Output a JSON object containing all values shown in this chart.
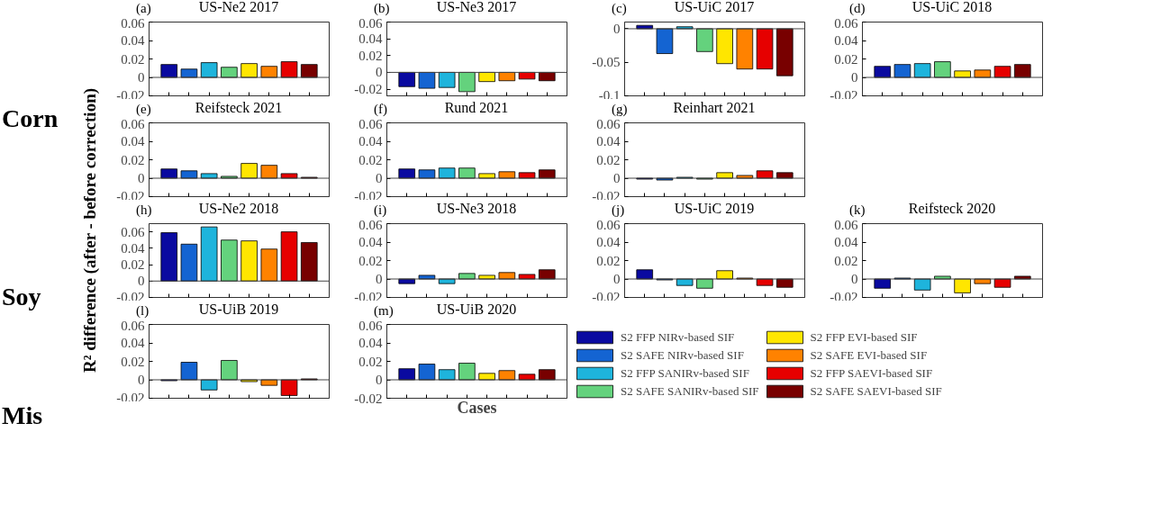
{
  "chart_data": [
    {
      "type": "bar",
      "title": "US-Ne2 2017",
      "ylabel": "R² difference (after - before correction)",
      "annotations": [
        "(a)",
        "Corn"
      ],
      "categories": [
        null
      ],
      "tick_labels": "y",
      "ylim": [
        -0.02,
        0.06
      ],
      "yticks": [
        -0.02,
        0,
        0.02,
        0.04,
        0.06
      ],
      "ref_lines": [
        {
          "axis": "y",
          "value": 0
        }
      ],
      "series": [
        {
          "color": "#0a0aa0",
          "values": [
            0.014
          ]
        },
        {
          "color": "#1464d2",
          "values": [
            0.009
          ]
        },
        {
          "color": "#1eb4dc",
          "values": [
            0.016
          ]
        },
        {
          "color": "#64d27d",
          "values": [
            0.011
          ]
        },
        {
          "color": "#ffe600",
          "values": [
            0.015
          ]
        },
        {
          "color": "#ff8200",
          "values": [
            0.012
          ]
        },
        {
          "color": "#e60000",
          "values": [
            0.017
          ]
        },
        {
          "color": "#780000",
          "values": [
            0.014
          ]
        }
      ]
    },
    {
      "type": "bar",
      "title": "US-Ne3 2017",
      "annotations": [
        "(b)"
      ],
      "categories": [
        null
      ],
      "tick_labels": "y",
      "ylim": [
        -0.028,
        0.06
      ],
      "yticks": [
        -0.02,
        0,
        0.02,
        0.04,
        0.06
      ],
      "ref_lines": [
        {
          "axis": "y",
          "value": 0
        }
      ],
      "series": [
        {
          "color": "#0a0aa0",
          "values": [
            -0.017
          ]
        },
        {
          "color": "#1464d2",
          "values": [
            -0.019
          ]
        },
        {
          "color": "#1eb4dc",
          "values": [
            -0.018
          ]
        },
        {
          "color": "#64d27d",
          "values": [
            -0.023
          ]
        },
        {
          "color": "#ffe600",
          "values": [
            -0.011
          ]
        },
        {
          "color": "#ff8200",
          "values": [
            -0.01
          ]
        },
        {
          "color": "#e60000",
          "values": [
            -0.008
          ]
        },
        {
          "color": "#780000",
          "values": [
            -0.01
          ]
        }
      ]
    },
    {
      "type": "bar",
      "title": "US-UiC 2017",
      "annotations": [
        "(c)"
      ],
      "categories": [
        null
      ],
      "tick_labels": "y",
      "ylim": [
        -0.1,
        0.01
      ],
      "yticks": [
        -0.1,
        -0.05,
        0
      ],
      "ref_lines": [
        {
          "axis": "y",
          "value": 0
        }
      ],
      "series": [
        {
          "color": "#0a0aa0",
          "values": [
            0.005
          ]
        },
        {
          "color": "#1464d2",
          "values": [
            -0.037
          ]
        },
        {
          "color": "#1eb4dc",
          "values": [
            0.003
          ]
        },
        {
          "color": "#64d27d",
          "values": [
            -0.034
          ]
        },
        {
          "color": "#ffe600",
          "values": [
            -0.052
          ]
        },
        {
          "color": "#ff8200",
          "values": [
            -0.06
          ]
        },
        {
          "color": "#e60000",
          "values": [
            -0.06
          ]
        },
        {
          "color": "#780000",
          "values": [
            -0.07
          ]
        }
      ]
    },
    {
      "type": "bar",
      "title": "US-UiC 2018",
      "annotations": [
        "(d)"
      ],
      "categories": [
        null
      ],
      "tick_labels": "y",
      "ylim": [
        -0.02,
        0.06
      ],
      "yticks": [
        -0.02,
        0,
        0.02,
        0.04,
        0.06
      ],
      "ref_lines": [
        {
          "axis": "y",
          "value": 0
        }
      ],
      "series": [
        {
          "color": "#0a0aa0",
          "values": [
            0.012
          ]
        },
        {
          "color": "#1464d2",
          "values": [
            0.014
          ]
        },
        {
          "color": "#1eb4dc",
          "values": [
            0.015
          ]
        },
        {
          "color": "#64d27d",
          "values": [
            0.017
          ]
        },
        {
          "color": "#ffe600",
          "values": [
            0.007
          ]
        },
        {
          "color": "#ff8200",
          "values": [
            0.008
          ]
        },
        {
          "color": "#e60000",
          "values": [
            0.012
          ]
        },
        {
          "color": "#780000",
          "values": [
            0.014
          ]
        }
      ]
    },
    {
      "type": "bar",
      "title": "Reifsteck 2021",
      "annotations": [
        "(e)"
      ],
      "categories": [
        null
      ],
      "tick_labels": "y",
      "ylim": [
        -0.02,
        0.06
      ],
      "yticks": [
        -0.02,
        0,
        0.02,
        0.04,
        0.06
      ],
      "ref_lines": [
        {
          "axis": "y",
          "value": 0
        }
      ],
      "series": [
        {
          "color": "#0a0aa0",
          "values": [
            0.01
          ]
        },
        {
          "color": "#1464d2",
          "values": [
            0.008
          ]
        },
        {
          "color": "#1eb4dc",
          "values": [
            0.005
          ]
        },
        {
          "color": "#64d27d",
          "values": [
            0.002
          ]
        },
        {
          "color": "#ffe600",
          "values": [
            0.016
          ]
        },
        {
          "color": "#ff8200",
          "values": [
            0.014
          ]
        },
        {
          "color": "#e60000",
          "values": [
            0.005
          ]
        },
        {
          "color": "#780000",
          "values": [
            0.001
          ]
        }
      ]
    },
    {
      "type": "bar",
      "title": "Rund 2021",
      "annotations": [
        "(f)"
      ],
      "categories": [
        null
      ],
      "tick_labels": "y",
      "ylim": [
        -0.02,
        0.06
      ],
      "yticks": [
        -0.02,
        0,
        0.02,
        0.04,
        0.06
      ],
      "ref_lines": [
        {
          "axis": "y",
          "value": 0
        }
      ],
      "series": [
        {
          "color": "#0a0aa0",
          "values": [
            0.01
          ]
        },
        {
          "color": "#1464d2",
          "values": [
            0.009
          ]
        },
        {
          "color": "#1eb4dc",
          "values": [
            0.011
          ]
        },
        {
          "color": "#64d27d",
          "values": [
            0.011
          ]
        },
        {
          "color": "#ffe600",
          "values": [
            0.005
          ]
        },
        {
          "color": "#ff8200",
          "values": [
            0.007
          ]
        },
        {
          "color": "#e60000",
          "values": [
            0.006
          ]
        },
        {
          "color": "#780000",
          "values": [
            0.009
          ]
        }
      ]
    },
    {
      "type": "bar",
      "title": "Reinhart 2021",
      "annotations": [
        "(g)"
      ],
      "categories": [
        null
      ],
      "tick_labels": "y",
      "ylim": [
        -0.02,
        0.06
      ],
      "yticks": [
        -0.02,
        0,
        0.02,
        0.04,
        0.06
      ],
      "ref_lines": [
        {
          "axis": "y",
          "value": 0
        }
      ],
      "series": [
        {
          "color": "#0a0aa0",
          "values": [
            -0.001
          ]
        },
        {
          "color": "#1464d2",
          "values": [
            -0.002
          ]
        },
        {
          "color": "#1eb4dc",
          "values": [
            0.001
          ]
        },
        {
          "color": "#64d27d",
          "values": [
            -0.001
          ]
        },
        {
          "color": "#ffe600",
          "values": [
            0.006
          ]
        },
        {
          "color": "#ff8200",
          "values": [
            0.003
          ]
        },
        {
          "color": "#e60000",
          "values": [
            0.008
          ]
        },
        {
          "color": "#780000",
          "values": [
            0.006
          ]
        }
      ]
    },
    {
      "type": "bar",
      "title": "US-Ne2 2018",
      "annotations": [
        "(h)",
        "Soy"
      ],
      "categories": [
        null
      ],
      "tick_labels": "y",
      "ylim": [
        -0.02,
        0.07
      ],
      "yticks": [
        -0.02,
        0,
        0.02,
        0.04,
        0.06
      ],
      "ref_lines": [
        {
          "axis": "y",
          "value": 0
        }
      ],
      "series": [
        {
          "color": "#0a0aa0",
          "values": [
            0.059
          ]
        },
        {
          "color": "#1464d2",
          "values": [
            0.045
          ]
        },
        {
          "color": "#1eb4dc",
          "values": [
            0.066
          ]
        },
        {
          "color": "#64d27d",
          "values": [
            0.05
          ]
        },
        {
          "color": "#ffe600",
          "values": [
            0.049
          ]
        },
        {
          "color": "#ff8200",
          "values": [
            0.039
          ]
        },
        {
          "color": "#e60000",
          "values": [
            0.06
          ]
        },
        {
          "color": "#780000",
          "values": [
            0.047
          ]
        }
      ]
    },
    {
      "type": "bar",
      "title": "US-Ne3 2018",
      "annotations": [
        "(i)"
      ],
      "categories": [
        null
      ],
      "tick_labels": "y",
      "ylim": [
        -0.02,
        0.06
      ],
      "yticks": [
        -0.02,
        0,
        0.02,
        0.04,
        0.06
      ],
      "ref_lines": [
        {
          "axis": "y",
          "value": 0
        }
      ],
      "series": [
        {
          "color": "#0a0aa0",
          "values": [
            -0.005
          ]
        },
        {
          "color": "#1464d2",
          "values": [
            0.004
          ]
        },
        {
          "color": "#1eb4dc",
          "values": [
            -0.005
          ]
        },
        {
          "color": "#64d27d",
          "values": [
            0.006
          ]
        },
        {
          "color": "#ffe600",
          "values": [
            0.004
          ]
        },
        {
          "color": "#ff8200",
          "values": [
            0.007
          ]
        },
        {
          "color": "#e60000",
          "values": [
            0.005
          ]
        },
        {
          "color": "#780000",
          "values": [
            0.01
          ]
        }
      ]
    },
    {
      "type": "bar",
      "title": "US-UiC 2019",
      "annotations": [
        "(j)"
      ],
      "categories": [
        null
      ],
      "tick_labels": "y",
      "ylim": [
        -0.02,
        0.06
      ],
      "yticks": [
        -0.02,
        0,
        0.02,
        0.04,
        0.06
      ],
      "ref_lines": [
        {
          "axis": "y",
          "value": 0
        }
      ],
      "series": [
        {
          "color": "#0a0aa0",
          "values": [
            0.01
          ]
        },
        {
          "color": "#1464d2",
          "values": [
            -0.001
          ]
        },
        {
          "color": "#1eb4dc",
          "values": [
            -0.007
          ]
        },
        {
          "color": "#64d27d",
          "values": [
            -0.01
          ]
        },
        {
          "color": "#ffe600",
          "values": [
            0.009
          ]
        },
        {
          "color": "#ff8200",
          "values": [
            0.001
          ]
        },
        {
          "color": "#e60000",
          "values": [
            -0.007
          ]
        },
        {
          "color": "#780000",
          "values": [
            -0.009
          ]
        }
      ]
    },
    {
      "type": "bar",
      "title": "Reifsteck 2020",
      "annotations": [
        "(k)"
      ],
      "categories": [
        null
      ],
      "tick_labels": "y",
      "ylim": [
        -0.02,
        0.06
      ],
      "yticks": [
        -0.02,
        0,
        0.02,
        0.04,
        0.06
      ],
      "ref_lines": [
        {
          "axis": "y",
          "value": 0
        }
      ],
      "series": [
        {
          "color": "#0a0aa0",
          "values": [
            -0.01
          ]
        },
        {
          "color": "#1464d2",
          "values": [
            0.001
          ]
        },
        {
          "color": "#1eb4dc",
          "values": [
            -0.012
          ]
        },
        {
          "color": "#64d27d",
          "values": [
            0.003
          ]
        },
        {
          "color": "#ffe600",
          "values": [
            -0.015
          ]
        },
        {
          "color": "#ff8200",
          "values": [
            -0.005
          ]
        },
        {
          "color": "#e60000",
          "values": [
            -0.009
          ]
        },
        {
          "color": "#780000",
          "values": [
            0.003
          ]
        }
      ]
    },
    {
      "type": "bar",
      "title": "US-UiB 2019",
      "annotations": [
        "(l)",
        "Mis"
      ],
      "categories": [
        null
      ],
      "tick_labels": "y",
      "ylim": [
        -0.02,
        0.06
      ],
      "yticks": [
        -0.02,
        0,
        0.02,
        0.04,
        0.06
      ],
      "ref_lines": [
        {
          "axis": "y",
          "value": 0
        }
      ],
      "series": [
        {
          "color": "#0a0aa0",
          "values": [
            -0.001
          ]
        },
        {
          "color": "#1464d2",
          "values": [
            0.019
          ]
        },
        {
          "color": "#1eb4dc",
          "values": [
            -0.011
          ]
        },
        {
          "color": "#64d27d",
          "values": [
            0.021
          ]
        },
        {
          "color": "#ffe600",
          "values": [
            -0.002
          ]
        },
        {
          "color": "#ff8200",
          "values": [
            -0.006
          ]
        },
        {
          "color": "#e60000",
          "values": [
            -0.017
          ]
        },
        {
          "color": "#780000",
          "values": [
            0.001
          ]
        }
      ]
    },
    {
      "type": "bar",
      "title": "US-UiB 2020",
      "xlabel": "Cases",
      "annotations": [
        "(m)"
      ],
      "categories": [
        null
      ],
      "tick_labels": "y",
      "legend": "right",
      "ylim": [
        -0.02,
        0.06
      ],
      "yticks": [
        -0.02,
        0,
        0.02,
        0.04,
        0.06
      ],
      "ref_lines": [
        {
          "axis": "y",
          "value": 0
        }
      ],
      "series": [
        {
          "name": "S2 FFP NIRv-based SIF",
          "color": "#0a0aa0",
          "values": [
            0.012
          ]
        },
        {
          "name": "S2 SAFE NIRv-based SIF",
          "color": "#1464d2",
          "values": [
            0.017
          ]
        },
        {
          "name": "S2 FFP SANIRv-based SIF",
          "color": "#1eb4dc",
          "values": [
            0.011
          ]
        },
        {
          "name": "S2 SAFE SANIRv-based SIF",
          "color": "#64d27d",
          "values": [
            0.018
          ]
        },
        {
          "name": "S2 FFP EVI-based SIF",
          "color": "#ffe600",
          "values": [
            0.007
          ]
        },
        {
          "name": "S2 SAFE EVI-based SIF",
          "color": "#ff8200",
          "values": [
            0.01
          ]
        },
        {
          "name": "S2 FFP SAEVI-based SIF",
          "color": "#e60000",
          "values": [
            0.006
          ]
        },
        {
          "name": "S2 SAFE SAEVI-based SIF",
          "color": "#780000",
          "values": [
            0.011
          ]
        }
      ]
    }
  ]
}
